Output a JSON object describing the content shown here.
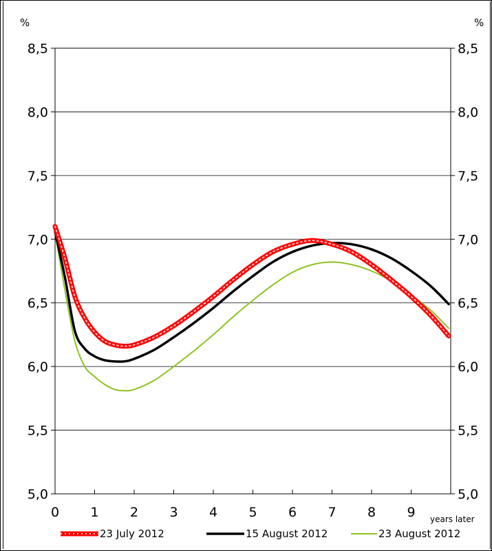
{
  "chart_data": {
    "type": "line",
    "xlim": [
      0,
      10
    ],
    "ylim": [
      5.0,
      8.5
    ],
    "x_ticks": [
      "0",
      "1",
      "2",
      "3",
      "4",
      "5",
      "6",
      "7",
      "8",
      "9"
    ],
    "x_tick_values": [
      0,
      1,
      2,
      3,
      4,
      5,
      6,
      7,
      8,
      9
    ],
    "y_ticks": [
      "5,0",
      "5,5",
      "6,0",
      "6,5",
      "7,0",
      "7,5",
      "8,0",
      "8,5"
    ],
    "y_tick_values": [
      5.0,
      5.5,
      6.0,
      6.5,
      7.0,
      7.5,
      8.0,
      8.5
    ],
    "ylabel_left": "%",
    "ylabel_right": "%",
    "xlabel": "years later",
    "grid": true,
    "legend_position": "bottom",
    "series": [
      {
        "name": "23 July 2012",
        "color": "#ff0000",
        "style": "thick-dotted",
        "x": [
          0,
          0.25,
          0.5,
          0.75,
          1,
          1.25,
          1.5,
          1.75,
          2,
          2.5,
          3,
          3.5,
          4,
          4.5,
          5,
          5.5,
          6,
          6.5,
          7,
          7.5,
          8,
          8.5,
          9,
          9.5,
          9.95
        ],
        "y": [
          7.1,
          6.85,
          6.55,
          6.38,
          6.27,
          6.2,
          6.17,
          6.16,
          6.17,
          6.23,
          6.32,
          6.43,
          6.55,
          6.68,
          6.8,
          6.9,
          6.96,
          6.99,
          6.96,
          6.9,
          6.8,
          6.68,
          6.55,
          6.4,
          6.24
        ]
      },
      {
        "name": "15 August 2012",
        "color": "#000000",
        "style": "solid-thick",
        "x": [
          0,
          0.25,
          0.5,
          0.75,
          1,
          1.25,
          1.5,
          1.75,
          2,
          2.5,
          3,
          3.5,
          4,
          4.5,
          5,
          5.5,
          6,
          6.5,
          7,
          7.5,
          8,
          8.5,
          9,
          9.5,
          9.95
        ],
        "y": [
          7.06,
          6.7,
          6.28,
          6.14,
          6.08,
          6.05,
          6.04,
          6.04,
          6.06,
          6.13,
          6.23,
          6.34,
          6.46,
          6.59,
          6.71,
          6.82,
          6.9,
          6.95,
          6.97,
          6.96,
          6.92,
          6.85,
          6.75,
          6.63,
          6.49
        ]
      },
      {
        "name": "23 August 2012",
        "color": "#8dc21f",
        "style": "solid-thin",
        "x": [
          0,
          0.25,
          0.5,
          0.75,
          1,
          1.25,
          1.5,
          1.75,
          2,
          2.5,
          3,
          3.5,
          4,
          4.5,
          5,
          5.5,
          6,
          6.5,
          7,
          7.5,
          8,
          8.5,
          9,
          9.5,
          9.95
        ],
        "y": [
          7.05,
          6.6,
          6.2,
          6.0,
          5.92,
          5.86,
          5.82,
          5.81,
          5.82,
          5.89,
          6.0,
          6.12,
          6.25,
          6.39,
          6.52,
          6.64,
          6.74,
          6.8,
          6.82,
          6.8,
          6.75,
          6.67,
          6.56,
          6.44,
          6.3
        ]
      }
    ]
  }
}
